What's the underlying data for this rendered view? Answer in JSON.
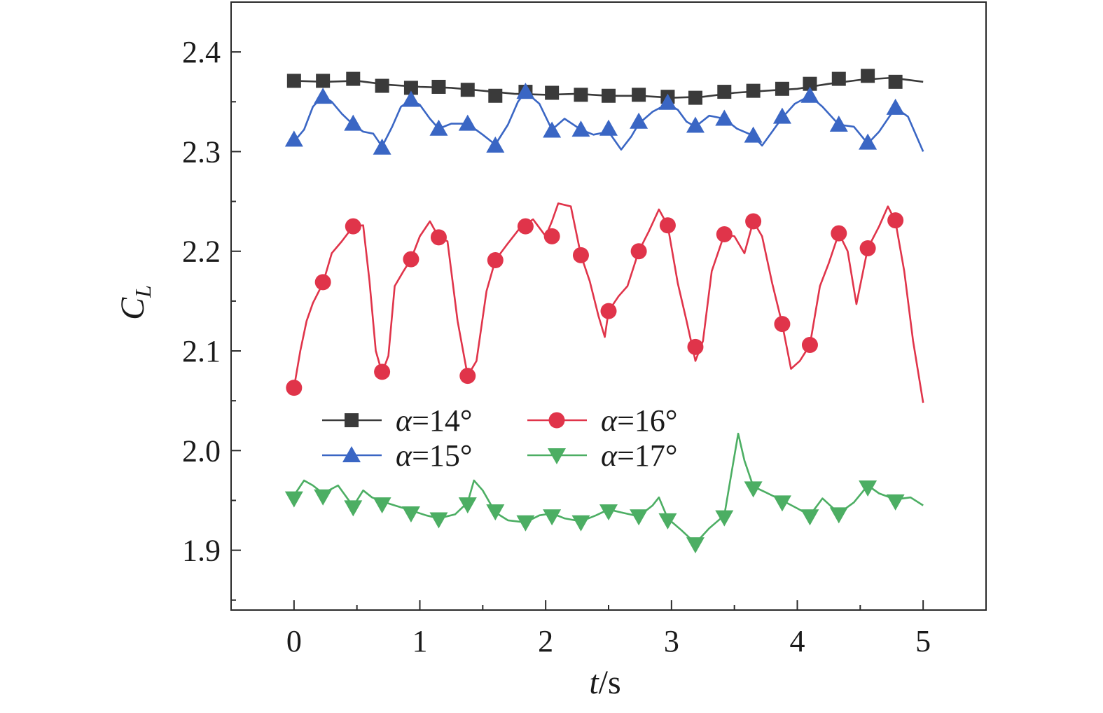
{
  "chart_data": {
    "type": "line",
    "title": "",
    "xlabel": {
      "var": "t",
      "unit": "/s"
    },
    "ylabel": {
      "var": "C",
      "sub": "L"
    },
    "xlim": [
      -0.5,
      5.5
    ],
    "ylim": [
      1.84,
      2.45
    ],
    "xticks": [
      0,
      1,
      2,
      3,
      4,
      5
    ],
    "xtick_labels": [
      "0",
      "1",
      "2",
      "3",
      "4",
      "5"
    ],
    "yticks": [
      1.9,
      2.0,
      2.1,
      2.2,
      2.3,
      2.4
    ],
    "ytick_labels": [
      "1.9",
      "2.0",
      "2.1",
      "2.2",
      "2.3",
      "2.4"
    ],
    "legend_position": "lower-left",
    "series": [
      {
        "name": "α=14°",
        "alpha": "α",
        "rest": "=14°",
        "color": "#3a3a3a",
        "marker": "square",
        "x": [
          0,
          0.25,
          0.5,
          0.75,
          1.0,
          1.25,
          1.5,
          1.75,
          2.0,
          2.25,
          2.5,
          2.75,
          3.0,
          3.25,
          3.5,
          3.75,
          4.0,
          4.25,
          4.5,
          4.75,
          5.0
        ],
        "y": [
          2.371,
          2.37,
          2.371,
          2.367,
          2.365,
          2.364,
          2.361,
          2.358,
          2.357,
          2.358,
          2.356,
          2.356,
          2.354,
          2.355,
          2.359,
          2.361,
          2.363,
          2.368,
          2.372,
          2.374,
          2.37
        ],
        "marker_x": [
          0.0,
          0.23,
          0.47,
          0.7,
          0.93,
          1.15,
          1.38,
          1.6,
          1.84,
          2.05,
          2.28,
          2.5,
          2.74,
          2.97,
          3.19,
          3.42,
          3.65,
          3.88,
          4.1,
          4.33,
          4.56,
          4.78
        ],
        "marker_y": [
          2.371,
          2.371,
          2.373,
          2.366,
          2.364,
          2.365,
          2.362,
          2.356,
          2.36,
          2.359,
          2.357,
          2.356,
          2.357,
          2.355,
          2.354,
          2.36,
          2.361,
          2.363,
          2.368,
          2.373,
          2.376,
          2.37
        ]
      },
      {
        "name": "α=15°",
        "alpha": "α",
        "rest": "=15°",
        "color": "#3a66c4",
        "marker": "triangle-up",
        "x": [
          0,
          0.08,
          0.15,
          0.23,
          0.3,
          0.38,
          0.47,
          0.55,
          0.63,
          0.7,
          0.78,
          0.85,
          0.93,
          1.0,
          1.08,
          1.15,
          1.25,
          1.38,
          1.5,
          1.6,
          1.7,
          1.78,
          1.84,
          1.95,
          2.05,
          2.15,
          2.28,
          2.38,
          2.5,
          2.6,
          2.68,
          2.74,
          2.85,
          2.97,
          3.05,
          3.12,
          3.19,
          3.3,
          3.42,
          3.52,
          3.65,
          3.72,
          3.8,
          3.88,
          3.98,
          4.1,
          4.2,
          4.33,
          4.45,
          4.56,
          4.65,
          4.78,
          4.88,
          5.0
        ],
        "y": [
          2.31,
          2.322,
          2.345,
          2.356,
          2.35,
          2.338,
          2.327,
          2.32,
          2.318,
          2.305,
          2.325,
          2.345,
          2.352,
          2.347,
          2.333,
          2.323,
          2.328,
          2.328,
          2.317,
          2.307,
          2.327,
          2.35,
          2.36,
          2.348,
          2.322,
          2.333,
          2.322,
          2.317,
          2.32,
          2.302,
          2.315,
          2.328,
          2.34,
          2.348,
          2.342,
          2.33,
          2.325,
          2.336,
          2.333,
          2.323,
          2.316,
          2.306,
          2.32,
          2.334,
          2.348,
          2.356,
          2.345,
          2.327,
          2.325,
          2.308,
          2.32,
          2.344,
          2.335,
          2.3
        ],
        "marker_x": [
          0.0,
          0.23,
          0.47,
          0.7,
          0.93,
          1.15,
          1.38,
          1.6,
          1.84,
          2.05,
          2.28,
          2.5,
          2.74,
          2.97,
          3.19,
          3.42,
          3.65,
          3.88,
          4.1,
          4.33,
          4.56,
          4.78
        ],
        "marker_y": [
          2.312,
          2.355,
          2.328,
          2.304,
          2.352,
          2.323,
          2.328,
          2.306,
          2.36,
          2.321,
          2.322,
          2.323,
          2.33,
          2.349,
          2.326,
          2.333,
          2.316,
          2.335,
          2.356,
          2.327,
          2.309,
          2.344
        ]
      },
      {
        "name": "α=16°",
        "alpha": "α",
        "rest": "=16°",
        "color": "#e0344a",
        "marker": "circle",
        "x": [
          0,
          0.05,
          0.1,
          0.15,
          0.23,
          0.3,
          0.38,
          0.47,
          0.55,
          0.6,
          0.65,
          0.7,
          0.75,
          0.8,
          0.87,
          0.93,
          1.0,
          1.08,
          1.15,
          1.22,
          1.3,
          1.38,
          1.45,
          1.53,
          1.6,
          1.7,
          1.8,
          1.9,
          2.0,
          2.05,
          2.1,
          2.2,
          2.28,
          2.35,
          2.42,
          2.47,
          2.5,
          2.58,
          2.65,
          2.74,
          2.82,
          2.9,
          2.97,
          3.05,
          3.12,
          3.19,
          3.25,
          3.32,
          3.42,
          3.5,
          3.58,
          3.65,
          3.72,
          3.8,
          3.88,
          3.95,
          4.02,
          4.1,
          4.18,
          4.25,
          4.33,
          4.4,
          4.47,
          4.56,
          4.65,
          4.72,
          4.78,
          4.85,
          4.92,
          5.0
        ],
        "y": [
          2.063,
          2.1,
          2.13,
          2.148,
          2.168,
          2.198,
          2.21,
          2.225,
          2.226,
          2.17,
          2.1,
          2.078,
          2.095,
          2.165,
          2.18,
          2.192,
          2.215,
          2.23,
          2.214,
          2.21,
          2.13,
          2.075,
          2.09,
          2.16,
          2.191,
          2.208,
          2.224,
          2.232,
          2.215,
          2.23,
          2.248,
          2.245,
          2.196,
          2.17,
          2.135,
          2.114,
          2.14,
          2.155,
          2.165,
          2.2,
          2.22,
          2.242,
          2.226,
          2.168,
          2.13,
          2.09,
          2.11,
          2.18,
          2.217,
          2.215,
          2.198,
          2.23,
          2.215,
          2.168,
          2.127,
          2.082,
          2.09,
          2.106,
          2.165,
          2.188,
          2.218,
          2.2,
          2.147,
          2.203,
          2.225,
          2.245,
          2.23,
          2.18,
          2.11,
          2.048
        ],
        "marker_x": [
          0.0,
          0.23,
          0.47,
          0.7,
          0.93,
          1.15,
          1.38,
          1.6,
          1.84,
          2.05,
          2.28,
          2.5,
          2.74,
          2.97,
          3.19,
          3.42,
          3.65,
          3.88,
          4.1,
          4.33,
          4.56,
          4.78
        ],
        "marker_y": [
          2.063,
          2.169,
          2.225,
          2.079,
          2.192,
          2.214,
          2.075,
          2.191,
          2.225,
          2.215,
          2.196,
          2.14,
          2.2,
          2.226,
          2.104,
          2.217,
          2.23,
          2.127,
          2.106,
          2.218,
          2.203,
          2.231
        ]
      },
      {
        "name": "α=17°",
        "alpha": "α",
        "rest": "=17°",
        "color": "#4cae63",
        "marker": "triangle-down",
        "x": [
          0,
          0.08,
          0.15,
          0.23,
          0.35,
          0.47,
          0.55,
          0.62,
          0.7,
          0.8,
          0.93,
          1.05,
          1.15,
          1.28,
          1.38,
          1.43,
          1.5,
          1.6,
          1.7,
          1.84,
          1.95,
          2.05,
          2.15,
          2.28,
          2.4,
          2.5,
          2.6,
          2.74,
          2.85,
          2.9,
          2.97,
          3.08,
          3.19,
          3.3,
          3.42,
          3.48,
          3.53,
          3.58,
          3.65,
          3.75,
          3.88,
          4.0,
          4.1,
          4.2,
          4.33,
          4.45,
          4.56,
          4.65,
          4.78,
          4.9,
          5.0
        ],
        "y": [
          1.955,
          1.97,
          1.965,
          1.957,
          1.965,
          1.944,
          1.96,
          1.953,
          1.949,
          1.945,
          1.94,
          1.935,
          1.932,
          1.936,
          1.948,
          1.97,
          1.96,
          1.938,
          1.93,
          1.928,
          1.935,
          1.937,
          1.932,
          1.929,
          1.935,
          1.941,
          1.938,
          1.934,
          1.945,
          1.953,
          1.932,
          1.92,
          1.907,
          1.922,
          1.935,
          1.98,
          2.017,
          1.99,
          1.964,
          1.958,
          1.95,
          1.942,
          1.935,
          1.952,
          1.937,
          1.948,
          1.965,
          1.957,
          1.951,
          1.953,
          1.945
        ],
        "marker_x": [
          0.0,
          0.23,
          0.47,
          0.7,
          0.93,
          1.15,
          1.38,
          1.6,
          1.84,
          2.05,
          2.28,
          2.5,
          2.74,
          2.97,
          3.19,
          3.42,
          3.65,
          3.88,
          4.1,
          4.33,
          4.56,
          4.78
        ],
        "marker_y": [
          1.952,
          1.954,
          1.943,
          1.946,
          1.937,
          1.931,
          1.946,
          1.939,
          1.928,
          1.934,
          1.928,
          1.939,
          1.934,
          1.93,
          1.906,
          1.933,
          1.962,
          1.948,
          1.934,
          1.936,
          1.963,
          1.949
        ]
      }
    ]
  }
}
